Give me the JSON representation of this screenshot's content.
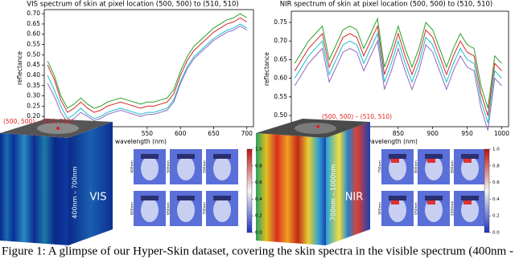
{
  "chart_data": [
    {
      "type": "line",
      "title": "VIS spectrum of skin at pixel location (500, 500) to (510, 510)",
      "x_label": "wavelength (nm)",
      "y_label": "reflectance",
      "x": [
        400,
        410,
        420,
        430,
        440,
        450,
        460,
        470,
        480,
        490,
        500,
        510,
        520,
        530,
        540,
        550,
        560,
        570,
        580,
        590,
        600,
        610,
        620,
        630,
        640,
        650,
        660,
        670,
        680,
        690,
        700
      ],
      "series": [
        {
          "color": "#d62728",
          "values": [
            0.45,
            0.38,
            0.28,
            0.22,
            0.24,
            0.27,
            0.24,
            0.22,
            0.23,
            0.25,
            0.26,
            0.27,
            0.26,
            0.25,
            0.24,
            0.25,
            0.25,
            0.26,
            0.27,
            0.31,
            0.4,
            0.47,
            0.52,
            0.55,
            0.58,
            0.61,
            0.63,
            0.65,
            0.66,
            0.68,
            0.66
          ]
        },
        {
          "color": "#2ca02c",
          "values": [
            0.47,
            0.4,
            0.3,
            0.24,
            0.26,
            0.29,
            0.26,
            0.24,
            0.25,
            0.27,
            0.28,
            0.29,
            0.28,
            0.27,
            0.26,
            0.27,
            0.27,
            0.28,
            0.29,
            0.33,
            0.42,
            0.49,
            0.54,
            0.57,
            0.6,
            0.63,
            0.65,
            0.67,
            0.68,
            0.7,
            0.68
          ]
        },
        {
          "color": "#17becf",
          "values": [
            0.4,
            0.33,
            0.25,
            0.19,
            0.21,
            0.24,
            0.21,
            0.19,
            0.2,
            0.22,
            0.23,
            0.24,
            0.23,
            0.22,
            0.21,
            0.22,
            0.22,
            0.23,
            0.24,
            0.28,
            0.37,
            0.44,
            0.49,
            0.52,
            0.55,
            0.58,
            0.6,
            0.62,
            0.63,
            0.65,
            0.63
          ]
        },
        {
          "color": "#9467bd",
          "values": [
            0.36,
            0.3,
            0.22,
            0.17,
            0.19,
            0.22,
            0.2,
            0.18,
            0.19,
            0.21,
            0.22,
            0.23,
            0.22,
            0.21,
            0.2,
            0.21,
            0.21,
            0.22,
            0.23,
            0.27,
            0.36,
            0.43,
            0.48,
            0.51,
            0.54,
            0.57,
            0.59,
            0.61,
            0.62,
            0.64,
            0.62
          ]
        }
      ],
      "xlim": [
        395,
        710
      ],
      "xticks": [
        550,
        600,
        650,
        700
      ],
      "ylim": [
        0.15,
        0.72
      ],
      "yticks": [
        {
          "value": 0.2,
          "label": "0.20"
        },
        {
          "value": 0.25,
          "label": "0.25"
        },
        {
          "value": 0.3,
          "label": "0.30"
        },
        {
          "value": 0.35,
          "label": "0.35"
        },
        {
          "value": 0.4,
          "label": "0.40"
        },
        {
          "value": 0.45,
          "label": "0.45"
        },
        {
          "value": 0.5,
          "label": "0.50"
        },
        {
          "value": 0.55,
          "label": "0.55"
        },
        {
          "value": 0.6,
          "label": "0.60"
        },
        {
          "value": 0.65,
          "label": "0.65"
        },
        {
          "value": 0.7,
          "label": "0.70"
        }
      ]
    },
    {
      "type": "line",
      "title": "NIR spectrum of skin at pixel location (500, 500) to (510, 510)",
      "x_label": "wavelength (nm)",
      "y_label": "reflectance",
      "x": [
        700,
        710,
        720,
        730,
        740,
        750,
        760,
        770,
        780,
        790,
        800,
        810,
        820,
        830,
        840,
        850,
        860,
        870,
        880,
        890,
        900,
        910,
        920,
        930,
        940,
        950,
        960,
        970,
        980,
        990,
        1000
      ],
      "series": [
        {
          "color": "#d62728",
          "values": [
            0.62,
            0.65,
            0.68,
            0.7,
            0.72,
            0.63,
            0.67,
            0.71,
            0.72,
            0.71,
            0.66,
            0.7,
            0.74,
            0.61,
            0.66,
            0.72,
            0.66,
            0.61,
            0.66,
            0.73,
            0.71,
            0.66,
            0.61,
            0.66,
            0.7,
            0.67,
            0.66,
            0.56,
            0.5,
            0.64,
            0.62
          ]
        },
        {
          "color": "#2ca02c",
          "values": [
            0.64,
            0.67,
            0.7,
            0.72,
            0.74,
            0.65,
            0.69,
            0.73,
            0.74,
            0.73,
            0.68,
            0.72,
            0.76,
            0.63,
            0.68,
            0.74,
            0.68,
            0.63,
            0.68,
            0.75,
            0.73,
            0.68,
            0.63,
            0.68,
            0.72,
            0.69,
            0.68,
            0.58,
            0.52,
            0.66,
            0.64
          ]
        },
        {
          "color": "#17becf",
          "values": [
            0.6,
            0.63,
            0.66,
            0.68,
            0.7,
            0.61,
            0.65,
            0.69,
            0.7,
            0.69,
            0.64,
            0.68,
            0.72,
            0.59,
            0.64,
            0.7,
            0.64,
            0.59,
            0.64,
            0.71,
            0.69,
            0.64,
            0.59,
            0.64,
            0.68,
            0.65,
            0.64,
            0.54,
            0.48,
            0.62,
            0.6
          ]
        },
        {
          "color": "#9467bd",
          "values": [
            0.58,
            0.61,
            0.64,
            0.66,
            0.68,
            0.59,
            0.63,
            0.67,
            0.68,
            0.67,
            0.62,
            0.66,
            0.7,
            0.57,
            0.62,
            0.68,
            0.62,
            0.57,
            0.62,
            0.69,
            0.67,
            0.62,
            0.57,
            0.62,
            0.66,
            0.63,
            0.62,
            0.52,
            0.46,
            0.6,
            0.58
          ]
        }
      ],
      "xlim": [
        695,
        1010
      ],
      "xticks": [
        850,
        900,
        950,
        1000
      ],
      "ylim": [
        0.47,
        0.78
      ],
      "yticks": [
        {
          "value": 0.5,
          "label": "0.50"
        },
        {
          "value": 0.55,
          "label": "0.55"
        },
        {
          "value": 0.6,
          "label": "0.60"
        },
        {
          "value": 0.65,
          "label": "0.65"
        },
        {
          "value": 0.7,
          "label": "0.70"
        },
        {
          "value": 0.75,
          "label": "0.75"
        }
      ]
    }
  ],
  "figure": {
    "vis": {
      "pixel_label": "(500, 500) – (510, 510)",
      "range_label": "400nm – 700nm",
      "name": "VIS",
      "thumb_labels": [
        "400nm",
        "500nm",
        "550nm",
        "600nm",
        "650nm",
        "700nm"
      ]
    },
    "nir": {
      "pixel_label": "(500, 500) – (510, 510)",
      "range_label": "700nm – 1000nm",
      "name": "NIR",
      "thumb_labels": [
        "750nm",
        "800nm",
        "850nm",
        "900nm",
        "950nm",
        "1000nm"
      ]
    },
    "colorbar_ticks": [
      {
        "value": 0,
        "label": "0.0"
      },
      {
        "value": 0.2,
        "label": "0.2"
      },
      {
        "value": 0.4,
        "label": "0.4"
      },
      {
        "value": 0.6,
        "label": "0.6"
      },
      {
        "value": 0.8,
        "label": "0.8"
      },
      {
        "value": 1,
        "label": "1.0"
      }
    ],
    "caption": "Figure 1: A glimpse of our Hyper-Skin dataset, covering the skin spectra in the visible spectrum (400nm -"
  }
}
